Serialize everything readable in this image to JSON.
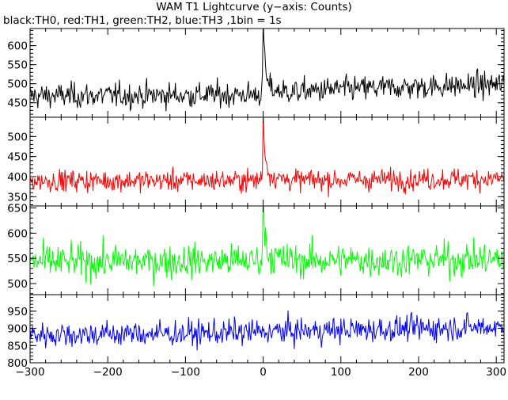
{
  "chart_data": {
    "type": "line",
    "title": "WAM T1 Lightcurve (y−axis: Counts)",
    "subtitle": "black:TH0, red:TH1, green:TH2, blue:TH3 ,1bin = 1s",
    "xlim": [
      -300,
      310
    ],
    "xticks": [
      -300,
      -200,
      -100,
      0,
      100,
      200,
      300
    ],
    "x_tick_labels": [
      "−300",
      "−200",
      "−100",
      "0",
      "100",
      "200",
      "300"
    ],
    "bin_seconds": 1,
    "panels": [
      {
        "series": "TH0",
        "color": "#000000",
        "ylim": [
          412,
          645
        ],
        "yticks": [
          450,
          500,
          550,
          600
        ],
        "baseline": [
          [
            -300,
            468
          ],
          [
            -100,
            470
          ],
          [
            -10,
            472
          ],
          [
            100,
            486
          ],
          [
            200,
            492
          ],
          [
            310,
            498
          ]
        ],
        "noise": 22,
        "peak": {
          "x": 0,
          "y": 640
        }
      },
      {
        "series": "TH1",
        "color": "#ff0000",
        "ylim": [
          327,
          548
        ],
        "yticks": [
          350,
          400,
          450,
          500
        ],
        "baseline": [
          [
            -300,
            390
          ],
          [
            -100,
            390
          ],
          [
            100,
            392
          ],
          [
            310,
            395
          ]
        ],
        "noise": 18,
        "peak": {
          "x": 0,
          "y": 540
        }
      },
      {
        "series": "TH2",
        "color": "#00ff00",
        "ylim": [
          478,
          654
        ],
        "yticks": [
          500,
          550,
          600,
          650
        ],
        "baseline": [
          [
            -300,
            543
          ],
          [
            310,
            548
          ]
        ],
        "noise": 22,
        "peak": {
          "x": 0,
          "y": 658
        }
      },
      {
        "series": "TH3",
        "color": "#0000ff",
        "ylim": [
          800,
          998
        ],
        "yticks": [
          800,
          850,
          900,
          950
        ],
        "baseline": [
          [
            -300,
            882
          ],
          [
            -100,
            885
          ],
          [
            100,
            895
          ],
          [
            310,
            905
          ]
        ],
        "noise": 25,
        "peak": null
      }
    ]
  }
}
